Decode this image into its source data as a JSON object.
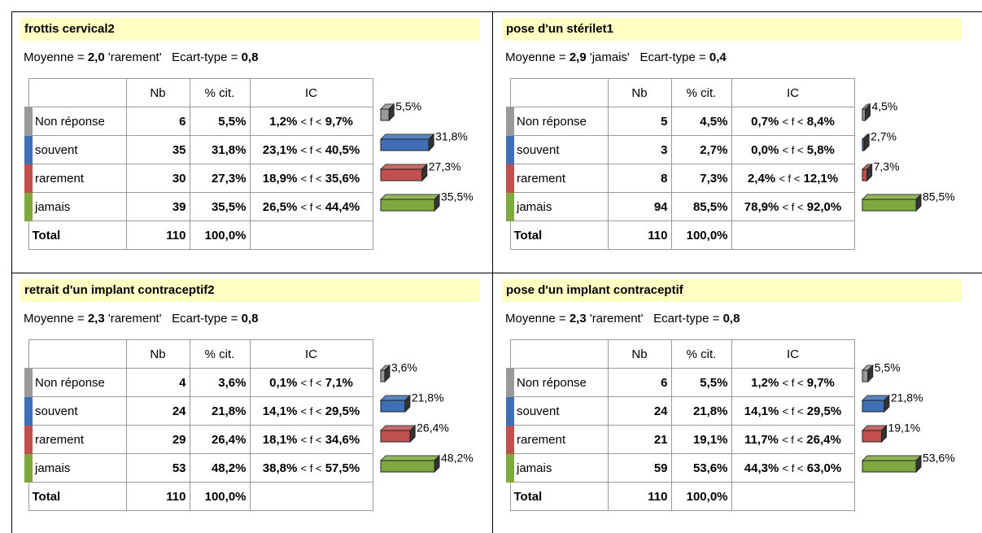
{
  "panels": [
    {
      "title": "frottis cervical2",
      "mean": {
        "label": "Moyenne =",
        "value": "2,0",
        "mode": "'rarement'"
      },
      "sd": {
        "label": "Ecart-type =",
        "value": "0,8"
      },
      "headers": [
        "Nb",
        "% cit.",
        "IC"
      ],
      "ic_sep": "< f <",
      "rows": [
        {
          "label": "Non réponse",
          "color": "#999999",
          "nb": 6,
          "pct": 5.5,
          "pct_label": "5,5%",
          "ic": [
            "1,2%",
            "9,7%"
          ]
        },
        {
          "label": "souvent",
          "color": "#3f6fb5",
          "nb": 35,
          "pct": 31.8,
          "pct_label": "31,8%",
          "ic": [
            "23,1%",
            "40,5%"
          ]
        },
        {
          "label": "rarement",
          "color": "#c0504d",
          "nb": 30,
          "pct": 27.3,
          "pct_label": "27,3%",
          "ic": [
            "18,9%",
            "35,6%"
          ]
        },
        {
          "label": "jamais",
          "color": "#7fa83f",
          "nb": 39,
          "pct": 35.5,
          "pct_label": "35,5%",
          "ic": [
            "26,5%",
            "44,4%"
          ]
        }
      ],
      "total": {
        "label": "Total",
        "nb": 110,
        "pct_label": "100,0%"
      }
    },
    {
      "title": "pose d'un stérilet1",
      "mean": {
        "label": "Moyenne =",
        "value": "2,9",
        "mode": "'jamais'"
      },
      "sd": {
        "label": "Ecart-type =",
        "value": "0,4"
      },
      "headers": [
        "Nb",
        "% cit.",
        "IC"
      ],
      "ic_sep": "< f <",
      "rows": [
        {
          "label": "Non réponse",
          "color": "#999999",
          "nb": 5,
          "pct": 4.5,
          "pct_label": "4,5%",
          "ic": [
            "0,7%",
            "8,4%"
          ]
        },
        {
          "label": "souvent",
          "color": "#3f6fb5",
          "nb": 3,
          "pct": 2.7,
          "pct_label": "2,7%",
          "ic": [
            "0,0%",
            "5,8%"
          ]
        },
        {
          "label": "rarement",
          "color": "#c0504d",
          "nb": 8,
          "pct": 7.3,
          "pct_label": "7,3%",
          "ic": [
            "2,4%",
            "12,1%"
          ]
        },
        {
          "label": "jamais",
          "color": "#7fa83f",
          "nb": 94,
          "pct": 85.5,
          "pct_label": "85,5%",
          "ic": [
            "78,9%",
            "92,0%"
          ]
        }
      ],
      "total": {
        "label": "Total",
        "nb": 110,
        "pct_label": "100,0%"
      }
    },
    {
      "title": "retrait d'un implant contraceptif2",
      "mean": {
        "label": "Moyenne =",
        "value": "2,3",
        "mode": "'rarement'"
      },
      "sd": {
        "label": "Ecart-type =",
        "value": "0,8"
      },
      "headers": [
        "Nb",
        "% cit.",
        "IC"
      ],
      "ic_sep": "< f <",
      "rows": [
        {
          "label": "Non réponse",
          "color": "#999999",
          "nb": 4,
          "pct": 3.6,
          "pct_label": "3,6%",
          "ic": [
            "0,1%",
            "7,1%"
          ]
        },
        {
          "label": "souvent",
          "color": "#3f6fb5",
          "nb": 24,
          "pct": 21.8,
          "pct_label": "21,8%",
          "ic": [
            "14,1%",
            "29,5%"
          ]
        },
        {
          "label": "rarement",
          "color": "#c0504d",
          "nb": 29,
          "pct": 26.4,
          "pct_label": "26,4%",
          "ic": [
            "18,1%",
            "34,6%"
          ]
        },
        {
          "label": "jamais",
          "color": "#7fa83f",
          "nb": 53,
          "pct": 48.2,
          "pct_label": "48,2%",
          "ic": [
            "38,8%",
            "57,5%"
          ]
        }
      ],
      "total": {
        "label": "Total",
        "nb": 110,
        "pct_label": "100,0%"
      }
    },
    {
      "title": "pose d'un implant contraceptif",
      "mean": {
        "label": "Moyenne =",
        "value": "2,3",
        "mode": "'rarement'"
      },
      "sd": {
        "label": "Ecart-type =",
        "value": "0,8"
      },
      "headers": [
        "Nb",
        "% cit.",
        "IC"
      ],
      "ic_sep": "< f <",
      "rows": [
        {
          "label": "Non réponse",
          "color": "#999999",
          "nb": 6,
          "pct": 5.5,
          "pct_label": "5,5%",
          "ic": [
            "1,2%",
            "9,7%"
          ]
        },
        {
          "label": "souvent",
          "color": "#3f6fb5",
          "nb": 24,
          "pct": 21.8,
          "pct_label": "21,8%",
          "ic": [
            "14,1%",
            "29,5%"
          ]
        },
        {
          "label": "rarement",
          "color": "#c0504d",
          "nb": 21,
          "pct": 19.1,
          "pct_label": "19,1%",
          "ic": [
            "11,7%",
            "26,4%"
          ]
        },
        {
          "label": "jamais",
          "color": "#7fa83f",
          "nb": 59,
          "pct": 53.6,
          "pct_label": "53,6%",
          "ic": [
            "44,3%",
            "63,0%"
          ]
        }
      ],
      "total": {
        "label": "Total",
        "nb": 110,
        "pct_label": "100,0%"
      }
    }
  ]
}
